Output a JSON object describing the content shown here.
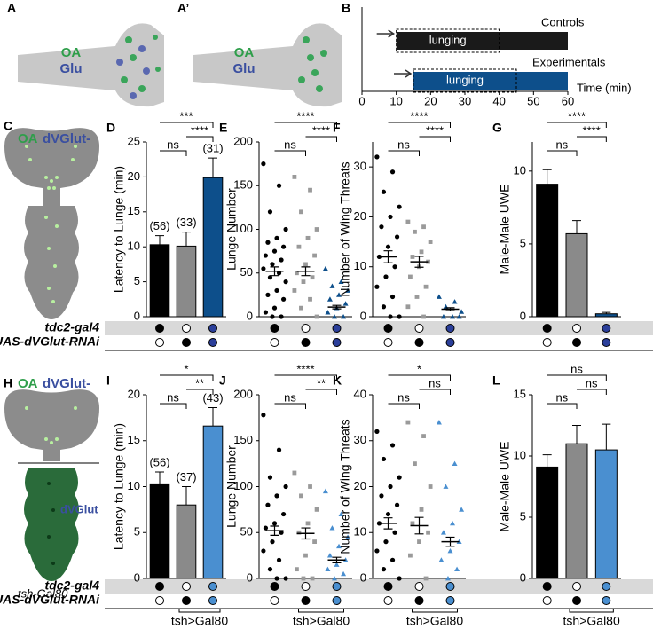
{
  "panels": {
    "A": "A",
    "A2": "A’",
    "B": "B",
    "C": "C",
    "H": "H"
  },
  "diagram": {
    "oa": "OA",
    "glu": "Glu",
    "dvglut_minus": "dVGlut-",
    "dvglut": "dVGlut",
    "tsh": "tsh-Gal80"
  },
  "genotypes": {
    "rows": [
      "tdc2-gal4",
      "UAS-dVGlut-RNAi"
    ],
    "present": [
      [
        true,
        false,
        true
      ],
      [
        false,
        true,
        true
      ]
    ],
    "rescue": "tsh>Gal80"
  },
  "chart_data": [
    {
      "type": "gantt",
      "xlabel": "Time (min)",
      "xlim": [
        0,
        60
      ],
      "xticks": [
        0,
        10,
        20,
        30,
        40,
        50,
        60
      ],
      "series": [
        {
          "name": "Controls",
          "color": "#1a1a1a",
          "start": 10,
          "end": 60,
          "window": [
            10,
            40
          ]
        },
        {
          "name": "Experimentals",
          "color": "#0d4f8b",
          "start": 15,
          "end": 60,
          "window": [
            15,
            45
          ]
        }
      ],
      "window_label": "lunging"
    },
    {
      "type": "bar",
      "panel": "D",
      "ylabel": "Latency to Lunge (min)",
      "ylim": [
        0,
        25
      ],
      "yticks": [
        0,
        5,
        10,
        15,
        20,
        25
      ],
      "values": [
        10.3,
        10.1,
        19.9
      ],
      "errors": [
        1.3,
        2.0,
        2.8
      ],
      "n_labels": [
        "(56)",
        "(33)",
        "(31)"
      ],
      "colors": [
        "#000000",
        "#8a8a8a",
        "#0d4f8b"
      ],
      "dot_colors": [
        "#000000",
        "#000000",
        "#2b3f9a"
      ],
      "sig": [
        {
          "label": "***",
          "from": 0,
          "to": 2
        },
        {
          "label": "****",
          "from": 1,
          "to": 2
        },
        {
          "label": "ns",
          "from": 0,
          "to": 1
        }
      ]
    },
    {
      "type": "scatter",
      "panel": "E",
      "ylabel": "Lunge Number",
      "ylim": [
        0,
        200
      ],
      "yticks": [
        0,
        50,
        100,
        150,
        200
      ],
      "points": [
        [
          175,
          150,
          120,
          100,
          90,
          85,
          80,
          75,
          70,
          65,
          60,
          55,
          50,
          45,
          40,
          30,
          25,
          20,
          10,
          5,
          0,
          0
        ],
        [
          160,
          145,
          120,
          100,
          90,
          80,
          70,
          60,
          50,
          45,
          40,
          30,
          20,
          10,
          0
        ],
        [
          55,
          40,
          35,
          30,
          25,
          20,
          15,
          10,
          5,
          0,
          0
        ]
      ],
      "means": [
        52,
        52,
        11
      ],
      "sem": [
        5,
        5,
        2
      ],
      "colors": [
        "#000000",
        "#9a9a9a",
        "#0d4f8b"
      ],
      "markers": [
        "circle",
        "square",
        "triangle"
      ],
      "dot_colors": [
        "#000000",
        "#000000",
        "#2b3f9a"
      ],
      "sig": [
        {
          "label": "****",
          "from": 0,
          "to": 2
        },
        {
          "label": "****",
          "from": 1,
          "to": 2
        },
        {
          "label": "ns",
          "from": 0,
          "to": 1
        }
      ]
    },
    {
      "type": "scatter",
      "panel": "F",
      "ylabel": "Number of Wing Threats",
      "ylim": [
        0,
        35
      ],
      "yticks": [
        0,
        10,
        20,
        30
      ],
      "points": [
        [
          32,
          29,
          25,
          22,
          20,
          18,
          16,
          14,
          12,
          10,
          8,
          6,
          4,
          2,
          0,
          0
        ],
        [
          19,
          18,
          17,
          15,
          13,
          12,
          11,
          10,
          8,
          6,
          4,
          2,
          0
        ],
        [
          4,
          3,
          2,
          1,
          0,
          0,
          0
        ]
      ],
      "means": [
        12,
        11,
        1.5
      ],
      "sem": [
        1.2,
        1.1,
        0.3
      ],
      "colors": [
        "#000000",
        "#9a9a9a",
        "#0d4f8b"
      ],
      "markers": [
        "circle",
        "square",
        "triangle"
      ],
      "dot_colors": [
        "#000000",
        "#000000",
        "#2b3f9a"
      ],
      "sig": [
        {
          "label": "****",
          "from": 0,
          "to": 2
        },
        {
          "label": "****",
          "from": 1,
          "to": 2
        },
        {
          "label": "ns",
          "from": 0,
          "to": 1
        }
      ]
    },
    {
      "type": "bar",
      "panel": "G",
      "ylabel": "Male-Male UWE",
      "ylim": [
        0,
        12
      ],
      "yticks": [
        0,
        5,
        10
      ],
      "values": [
        9.1,
        5.7,
        0.2
      ],
      "errors": [
        1.0,
        0.9,
        0.1
      ],
      "colors": [
        "#000000",
        "#8a8a8a",
        "#0d4f8b"
      ],
      "dot_colors": [
        "#000000",
        "#000000",
        "#2b3f9a"
      ],
      "sig": [
        {
          "label": "****",
          "from": 0,
          "to": 2
        },
        {
          "label": "****",
          "from": 1,
          "to": 2
        },
        {
          "label": "ns",
          "from": 0,
          "to": 1
        }
      ]
    },
    {
      "type": "bar",
      "panel": "I",
      "ylabel": "Latency to Lunge (min)",
      "ylim": [
        0,
        20
      ],
      "yticks": [
        0,
        5,
        10,
        15,
        20
      ],
      "values": [
        10.3,
        8.0,
        16.6
      ],
      "errors": [
        1.3,
        2.0,
        2.0
      ],
      "n_labels": [
        "(56)",
        "(37)",
        "(43)"
      ],
      "colors": [
        "#000000",
        "#8a8a8a",
        "#4a8fd0"
      ],
      "dot_colors": [
        "#000000",
        "#000000",
        "#4a8fd0"
      ],
      "sig": [
        {
          "label": "*",
          "from": 0,
          "to": 2
        },
        {
          "label": "**",
          "from": 1,
          "to": 2
        },
        {
          "label": "ns",
          "from": 0,
          "to": 1
        }
      ]
    },
    {
      "type": "scatter",
      "panel": "J",
      "ylabel": "Lunge Number",
      "ylim": [
        0,
        200
      ],
      "yticks": [
        0,
        50,
        100,
        150,
        200
      ],
      "points": [
        [
          178,
          140,
          110,
          100,
          90,
          80,
          70,
          60,
          55,
          50,
          40,
          30,
          20,
          10,
          0,
          0
        ],
        [
          115,
          100,
          90,
          75,
          60,
          50,
          40,
          25,
          10,
          0,
          0
        ],
        [
          95,
          70,
          55,
          45,
          35,
          25,
          20,
          15,
          10,
          5,
          0
        ]
      ],
      "means": [
        52,
        49,
        20
      ],
      "sem": [
        5,
        6,
        3
      ],
      "colors": [
        "#000000",
        "#9a9a9a",
        "#4a8fd0"
      ],
      "markers": [
        "circle",
        "square",
        "triangle"
      ],
      "dot_colors": [
        "#000000",
        "#000000",
        "#4a8fd0"
      ],
      "sig": [
        {
          "label": "****",
          "from": 0,
          "to": 2
        },
        {
          "label": "**",
          "from": 1,
          "to": 2
        },
        {
          "label": "ns",
          "from": 0,
          "to": 1
        }
      ]
    },
    {
      "type": "scatter",
      "panel": "K",
      "ylabel": "Number of Wing Threats",
      "ylim": [
        0,
        40
      ],
      "yticks": [
        0,
        10,
        20,
        30,
        40
      ],
      "points": [
        [
          32,
          29,
          26,
          22,
          20,
          18,
          16,
          14,
          12,
          10,
          8,
          6,
          4,
          2,
          0
        ],
        [
          34,
          31,
          25,
          20,
          15,
          12,
          10,
          8,
          5,
          0
        ],
        [
          34,
          25,
          20,
          15,
          12,
          10,
          8,
          6,
          4,
          2,
          0
        ]
      ],
      "means": [
        12,
        11.5,
        8
      ],
      "sem": [
        1.2,
        1.8,
        1
      ],
      "colors": [
        "#000000",
        "#9a9a9a",
        "#4a8fd0"
      ],
      "markers": [
        "circle",
        "square",
        "triangle"
      ],
      "dot_colors": [
        "#000000",
        "#000000",
        "#4a8fd0"
      ],
      "sig": [
        {
          "label": "*",
          "from": 0,
          "to": 2
        },
        {
          "label": "ns",
          "from": 1,
          "to": 2
        },
        {
          "label": "ns",
          "from": 0,
          "to": 1
        }
      ]
    },
    {
      "type": "bar",
      "panel": "L",
      "ylabel": "Male-Male UWE",
      "ylim": [
        0,
        15
      ],
      "yticks": [
        0,
        5,
        10,
        15
      ],
      "values": [
        9.1,
        11.0,
        10.5
      ],
      "errors": [
        1.0,
        1.5,
        2.1
      ],
      "colors": [
        "#000000",
        "#8a8a8a",
        "#4a8fd0"
      ],
      "dot_colors": [
        "#000000",
        "#000000",
        "#4a8fd0"
      ],
      "sig": [
        {
          "label": "ns",
          "from": 0,
          "to": 2
        },
        {
          "label": "ns",
          "from": 1,
          "to": 2
        },
        {
          "label": "ns",
          "from": 0,
          "to": 1
        }
      ]
    }
  ]
}
